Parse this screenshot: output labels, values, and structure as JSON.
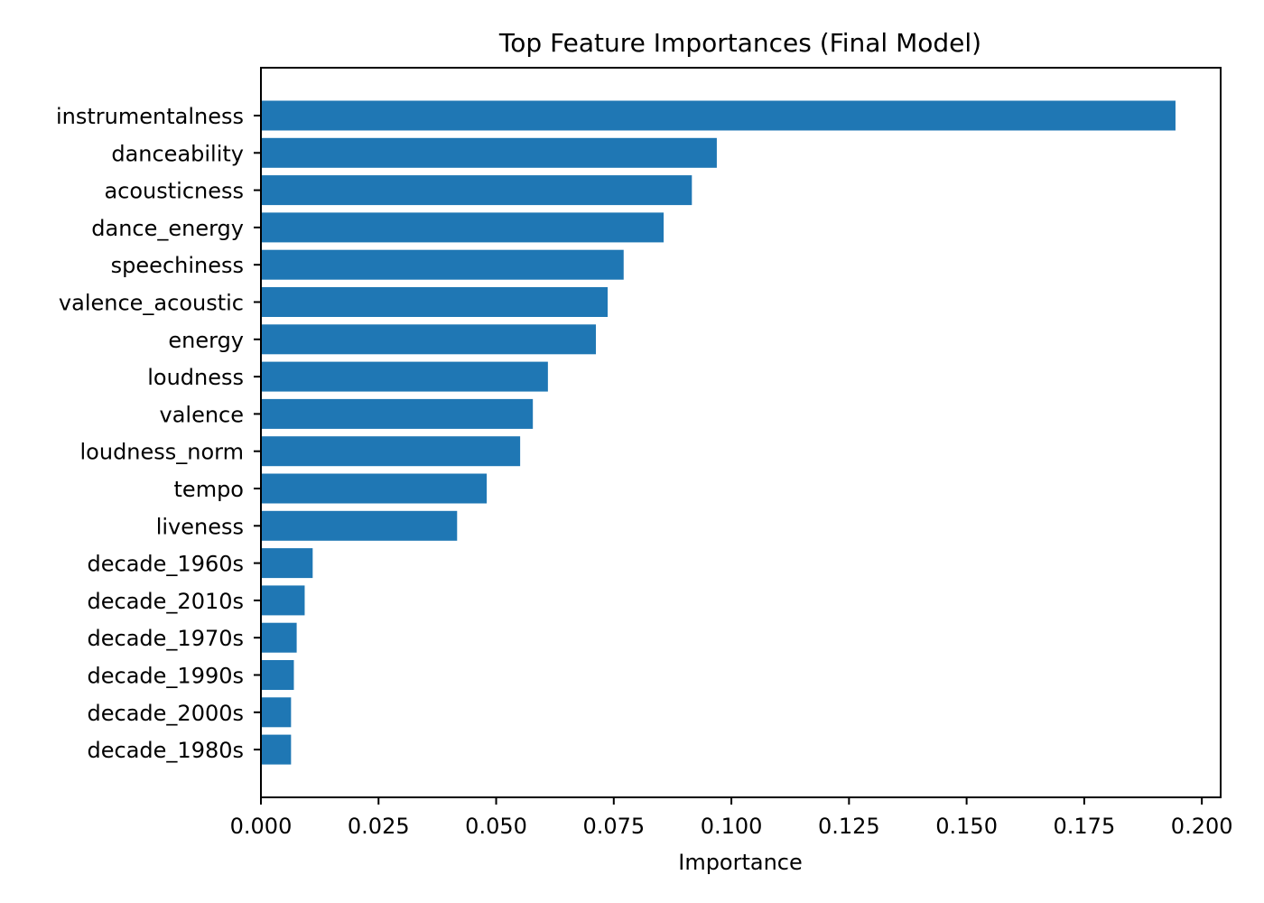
{
  "chart_data": {
    "type": "bar",
    "orientation": "horizontal",
    "title": "Top Feature Importances (Final Model)",
    "xlabel": "Importance",
    "ylabel": "",
    "xlim": [
      0,
      0.204
    ],
    "xticks": [
      "0.000",
      "0.025",
      "0.050",
      "0.075",
      "0.100",
      "0.125",
      "0.150",
      "0.175",
      "0.200"
    ],
    "xtick_values": [
      0,
      0.025,
      0.05,
      0.075,
      0.1,
      0.125,
      0.15,
      0.175,
      0.2
    ],
    "categories": [
      "instrumentalness",
      "danceability",
      "acousticness",
      "dance_energy",
      "speechiness",
      "valence_acoustic",
      "energy",
      "loudness",
      "valence",
      "loudness_norm",
      "tempo",
      "liveness",
      "decade_1960s",
      "decade_2010s",
      "decade_1970s",
      "decade_1990s",
      "decade_2000s",
      "decade_1980s"
    ],
    "values": [
      0.1944,
      0.0969,
      0.0916,
      0.0856,
      0.0771,
      0.0737,
      0.0712,
      0.061,
      0.0578,
      0.0551,
      0.048,
      0.0417,
      0.011,
      0.0093,
      0.0076,
      0.007,
      0.0064,
      0.0064
    ],
    "bar_color": "#1f77b4",
    "grid": false,
    "legend": "none"
  }
}
